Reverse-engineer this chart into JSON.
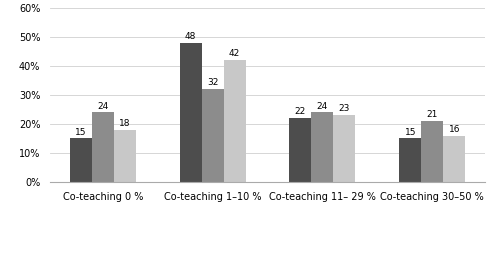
{
  "categories": [
    "Co-teaching 0 %",
    "Co-teaching 1–10 %",
    "Co-teaching 11– 29 %",
    "Co-teaching 30–50 %"
  ],
  "series": {
    "Grade 1-6": [
      15,
      48,
      22,
      15
    ],
    "Grade 7-9": [
      24,
      32,
      24,
      21
    ],
    "Total": [
      18,
      42,
      23,
      16
    ]
  },
  "colors": {
    "Grade 1-6": "#4d4d4d",
    "Grade 7-9": "#8c8c8c",
    "Total": "#c8c8c8"
  },
  "ylim": [
    0,
    60
  ],
  "yticks": [
    0,
    10,
    20,
    30,
    40,
    50,
    60
  ],
  "ytick_labels": [
    "0%",
    "10%",
    "20%",
    "30%",
    "40%",
    "50%",
    "60%"
  ],
  "bar_width": 0.2,
  "label_fontsize": 6.5,
  "tick_fontsize": 7.0,
  "xtick_fontsize": 7.0,
  "legend_fontsize": 7.5,
  "figsize": [
    5.0,
    2.6
  ],
  "dpi": 100
}
